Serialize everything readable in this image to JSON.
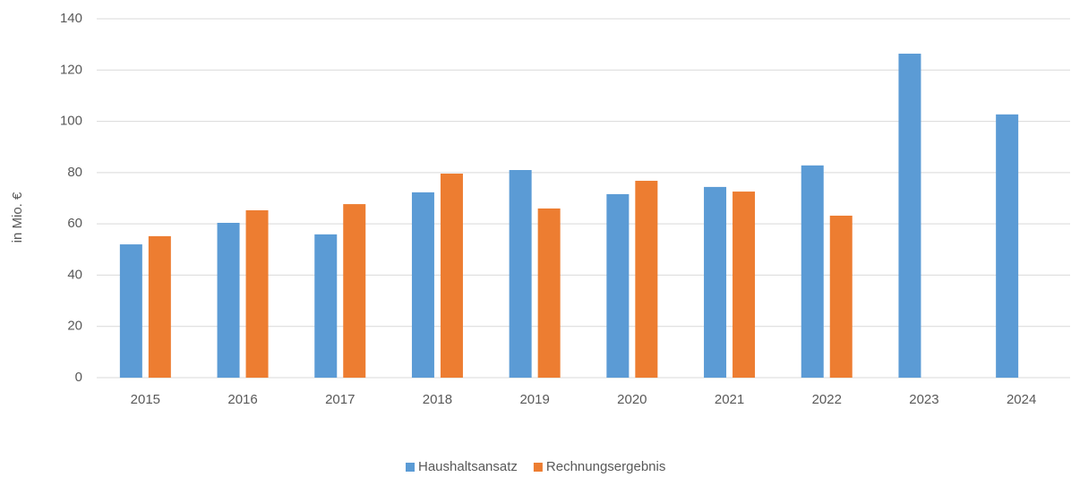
{
  "chart_data": {
    "type": "bar",
    "y_label": "in Mio. €",
    "categories": [
      "2015",
      "2016",
      "2017",
      "2018",
      "2019",
      "2020",
      "2021",
      "2022",
      "2023",
      "2024"
    ],
    "series": [
      {
        "name": "Haushaltsansatz",
        "color": "#5b9bd5",
        "values": [
          52.0,
          60.4,
          55.9,
          72.3,
          81.0,
          71.6,
          74.4,
          82.8,
          126.4,
          102.7
        ]
      },
      {
        "name": "Rechnungsergebnis",
        "color": "#ed7d31",
        "values": [
          55.2,
          65.3,
          67.7,
          79.6,
          66.0,
          76.8,
          72.6,
          63.2,
          null,
          null
        ]
      }
    ],
    "ylim": [
      0,
      140
    ],
    "yticks": [
      0,
      20,
      40,
      60,
      80,
      100,
      120,
      140
    ],
    "grid": true,
    "legend": "bottom"
  }
}
